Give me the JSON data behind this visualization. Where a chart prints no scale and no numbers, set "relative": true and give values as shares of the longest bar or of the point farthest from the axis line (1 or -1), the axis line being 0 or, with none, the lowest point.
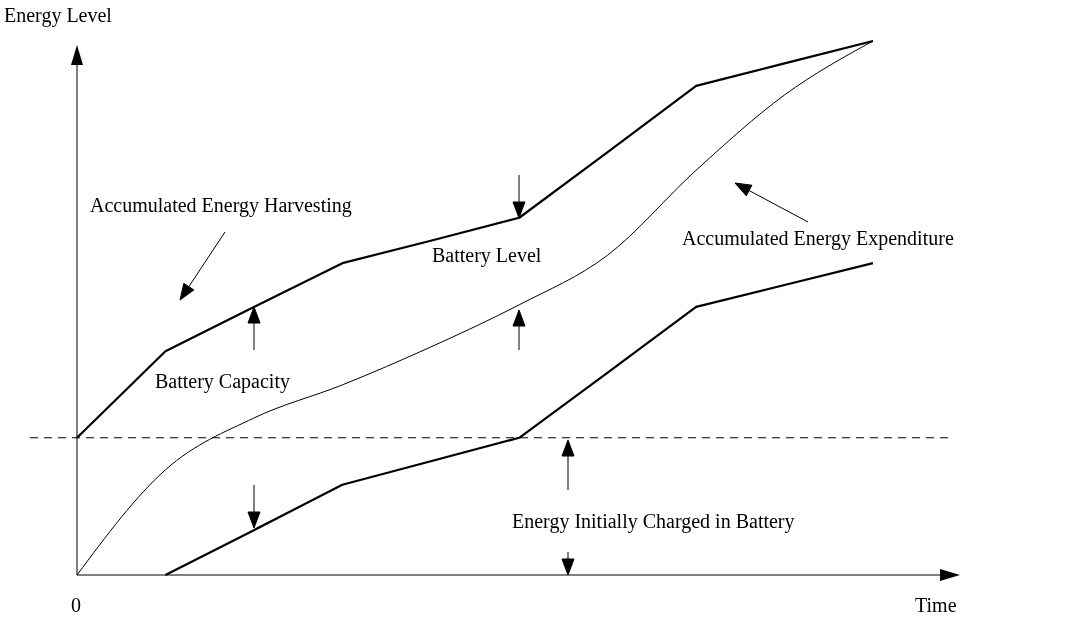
{
  "chart_data": {
    "type": "line",
    "relative": true,
    "xlabel": "Time",
    "ylabel": "Energy Level",
    "categories": [
      null,
      null,
      null,
      null,
      null,
      null,
      null,
      null,
      null,
      null
    ],
    "series": [
      {
        "name": "Accumulated Energy Harvesting",
        "color": "#000000",
        "values": [
          0.257,
          0.419,
          0.502,
          0.584,
          0.626,
          0.669,
          0.792,
          0.916,
          0.958,
          1
        ]
      },
      {
        "color": "#000000",
        "values": [
          null,
          0,
          0.084,
          0.169,
          0.213,
          0.257,
          0.379,
          0.502,
          0.543,
          0.584
        ]
      },
      {
        "name": "Accumulated Energy Expenditure",
        "color": "#000000",
        "values": [
          0,
          0.197,
          0.294,
          0.356,
          0.427,
          0.506,
          0.599,
          0.758,
          0.899,
          1
        ]
      }
    ],
    "ref_lines": [
      {
        "axis": "y",
        "value": 0.257,
        "color": "#000000",
        "line_style": "dashed"
      }
    ],
    "annotations": [
      "Battery Level",
      "Battery Capacity",
      "Energy Initially Charged in Battery",
      "0"
    ]
  }
}
